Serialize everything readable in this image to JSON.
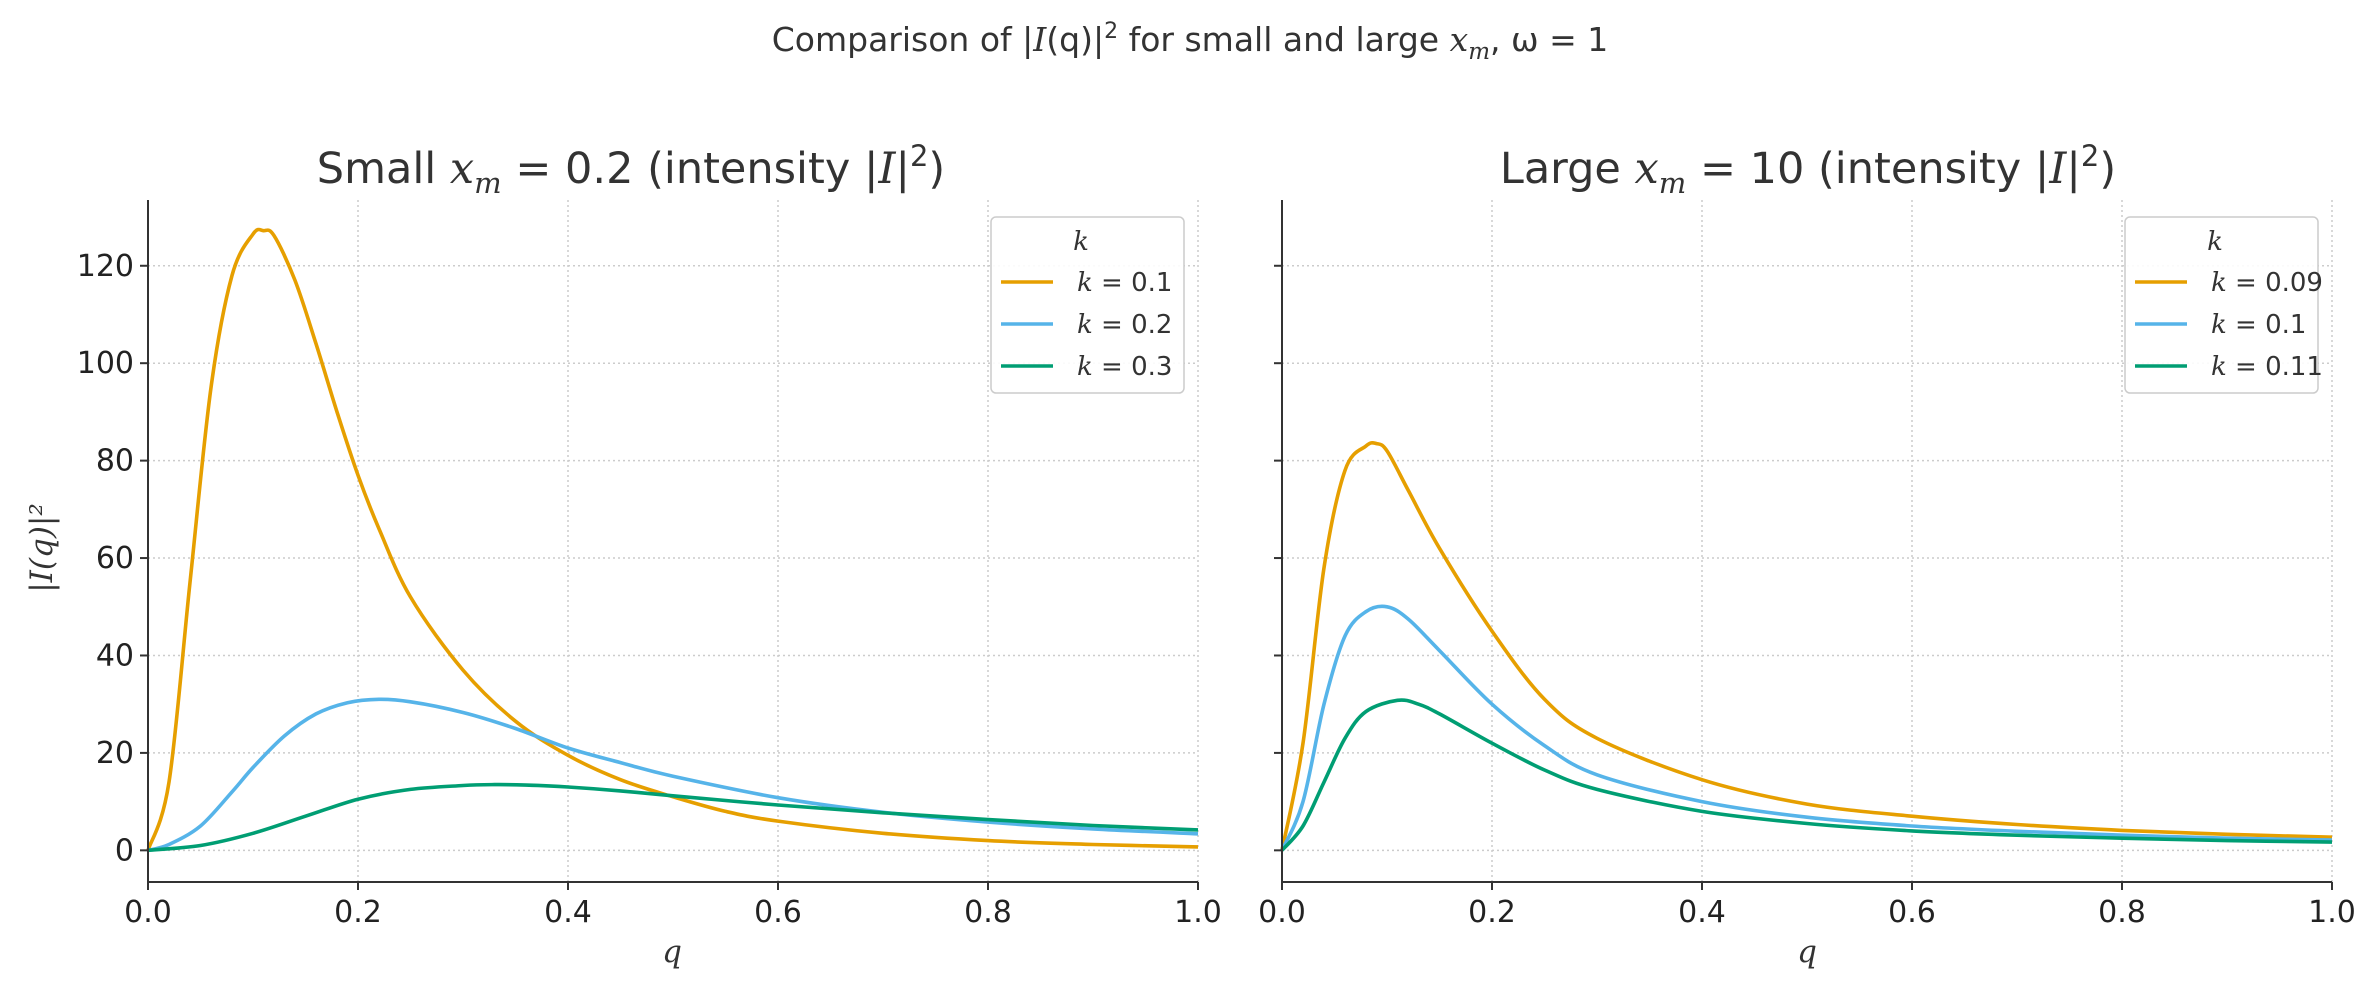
{
  "figure_title": {
    "prefix": "Comparison of |",
    "I": "I",
    "q_part": "(q)|",
    "exp": "2",
    "mid": " for small and large ",
    "x": "x",
    "m": "m",
    "tail": ", ω = 1"
  },
  "shared_ylabel": "|I(q)|²",
  "chart_data": [
    {
      "type": "line",
      "title": {
        "prefix": "Small ",
        "x": "x",
        "m": "m",
        "eq": " = 0.2 (intensity |",
        "I": "I",
        "bar": "|",
        "exp": "2",
        "close": ")"
      },
      "title_text": "Small x_m = 0.2 (intensity |I|²)",
      "xlabel": "q",
      "ylabel": "|I(q)|²",
      "xlim": [
        0.0,
        1.0
      ],
      "ylim": [
        -6.5,
        133.5
      ],
      "xticks": [
        0.0,
        0.2,
        0.4,
        0.6,
        0.8,
        1.0
      ],
      "xtick_labels": [
        "0.0",
        "0.2",
        "0.4",
        "0.6",
        "0.8",
        "1.0"
      ],
      "yticks": [
        0,
        20,
        40,
        60,
        80,
        100,
        120
      ],
      "ytick_labels": [
        "0",
        "20",
        "40",
        "60",
        "80",
        "100",
        "120"
      ],
      "grid": true,
      "legend_position": "top-right",
      "legend_title": "k",
      "series": [
        {
          "name": "k = 0.1",
          "k_value": "0.1",
          "color": "#E69F00",
          "x": [
            0,
            0.02,
            0.04,
            0.06,
            0.08,
            0.1,
            0.11,
            0.12,
            0.14,
            0.16,
            0.18,
            0.2,
            0.22,
            0.25,
            0.3,
            0.35,
            0.4,
            0.45,
            0.5,
            0.55,
            0.6,
            0.7,
            0.8,
            0.9,
            1.0
          ],
          "y": [
            0,
            14,
            55,
            95,
            118,
            126.5,
            127.2,
            126.2,
            117,
            104,
            90,
            77,
            66,
            52,
            37,
            26.5,
            19.5,
            14.5,
            11,
            8,
            6,
            3.5,
            2,
            1.2,
            0.7
          ]
        },
        {
          "name": "k = 0.2",
          "k_value": "0.2",
          "color": "#56B4E9",
          "x": [
            0,
            0.02,
            0.05,
            0.08,
            0.1,
            0.13,
            0.16,
            0.19,
            0.22,
            0.25,
            0.3,
            0.35,
            0.4,
            0.45,
            0.5,
            0.6,
            0.7,
            0.8,
            0.9,
            1.0
          ],
          "y": [
            0,
            1.2,
            5,
            12,
            17,
            23.5,
            28,
            30.3,
            31,
            30.5,
            28.3,
            25,
            21,
            18,
            15.2,
            10.8,
            7.8,
            5.8,
            4.4,
            3.4
          ]
        },
        {
          "name": "k = 0.3",
          "k_value": "0.3",
          "color": "#009E73",
          "x": [
            0,
            0.05,
            0.1,
            0.15,
            0.2,
            0.25,
            0.3,
            0.33,
            0.36,
            0.4,
            0.45,
            0.5,
            0.6,
            0.7,
            0.8,
            0.9,
            1.0
          ],
          "y": [
            0,
            1,
            3.5,
            7,
            10.5,
            12.5,
            13.3,
            13.5,
            13.4,
            13,
            12.2,
            11.2,
            9.3,
            7.7,
            6.3,
            5.1,
            4.2
          ]
        }
      ]
    },
    {
      "type": "line",
      "title": {
        "prefix": "Large ",
        "x": "x",
        "m": "m",
        "eq": " = 10 (intensity |",
        "I": "I",
        "bar": "|",
        "exp": "2",
        "close": ")"
      },
      "title_text": "Large x_m = 10 (intensity |I|²)",
      "xlabel": "q",
      "ylabel": "",
      "xlim": [
        0.0,
        1.0
      ],
      "ylim": [
        -6.5,
        133.5
      ],
      "xticks": [
        0.0,
        0.2,
        0.4,
        0.6,
        0.8,
        1.0
      ],
      "xtick_labels": [
        "0.0",
        "0.2",
        "0.4",
        "0.6",
        "0.8",
        "1.0"
      ],
      "yticks": [
        0,
        20,
        40,
        60,
        80,
        100,
        120
      ],
      "ytick_labels": [],
      "grid": true,
      "legend_position": "top-right",
      "legend_title": "k",
      "series": [
        {
          "name": "k = 0.09",
          "k_value": "0.09",
          "color": "#E69F00",
          "x": [
            0,
            0.02,
            0.04,
            0.06,
            0.08,
            0.09,
            0.1,
            0.12,
            0.15,
            0.2,
            0.25,
            0.3,
            0.4,
            0.5,
            0.6,
            0.7,
            0.8,
            0.9,
            1.0
          ],
          "y": [
            0,
            22,
            58,
            78,
            83,
            83.5,
            82,
            74,
            62,
            45,
            31,
            23,
            14.5,
            9.5,
            7,
            5.3,
            4.1,
            3.3,
            2.7
          ]
        },
        {
          "name": "k = 0.1",
          "k_value": "0.1",
          "color": "#56B4E9",
          "x": [
            0,
            0.02,
            0.04,
            0.06,
            0.08,
            0.1,
            0.12,
            0.15,
            0.2,
            0.25,
            0.3,
            0.4,
            0.5,
            0.6,
            0.7,
            0.8,
            0.9,
            1.0
          ],
          "y": [
            0,
            10,
            30,
            44,
            49,
            50,
            47.5,
            41,
            30,
            21.5,
            15.5,
            10,
            6.8,
            5,
            3.9,
            3.1,
            2.5,
            2.1
          ]
        },
        {
          "name": "k = 0.11",
          "k_value": "0.11",
          "color": "#009E73",
          "x": [
            0,
            0.02,
            0.04,
            0.06,
            0.08,
            0.11,
            0.13,
            0.15,
            0.2,
            0.25,
            0.3,
            0.4,
            0.5,
            0.6,
            0.7,
            0.8,
            0.9,
            1.0
          ],
          "y": [
            0,
            5,
            14,
            23,
            28.5,
            30.8,
            30,
            28,
            22,
            16.5,
            12.5,
            8,
            5.5,
            4,
            3.1,
            2.5,
            2,
            1.7
          ]
        }
      ]
    }
  ]
}
